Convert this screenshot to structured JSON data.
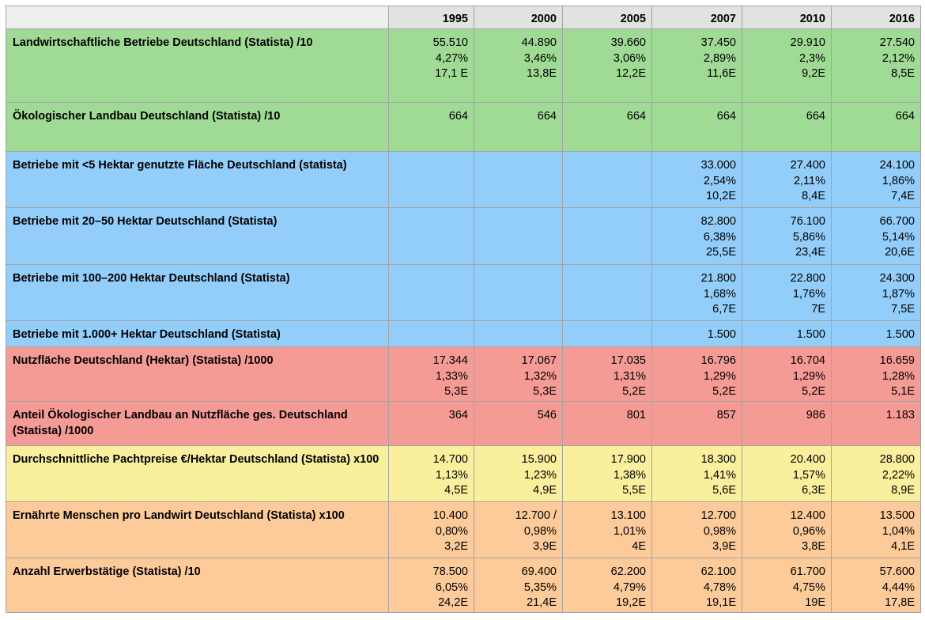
{
  "years": [
    "1995",
    "2000",
    "2005",
    "2007",
    "2010",
    "2016"
  ],
  "rows": [
    {
      "label": "Landwirtschaftliche Betriebe Deutschland (Statista) /10",
      "color": "#9fdb94",
      "cells": [
        [
          "55.510",
          "4,27%",
          "17,1 E"
        ],
        [
          "44.890",
          "3,46%",
          "13,8E"
        ],
        [
          "39.660",
          "3,06%",
          "12,2E"
        ],
        [
          "37.450",
          "2,89%",
          "11,6E"
        ],
        [
          "29.910",
          "2,3%",
          "9,2E"
        ],
        [
          "27.540",
          "2,12%",
          "8,5E"
        ]
      ]
    },
    {
      "label": "Ökologischer Landbau Deutschland (Statista) /10",
      "color": "#9fdb94",
      "cells": [
        [
          "664"
        ],
        [
          "664"
        ],
        [
          "664"
        ],
        [
          "664"
        ],
        [
          "664"
        ],
        [
          "664"
        ]
      ]
    },
    {
      "label": "Betriebe mit <5 Hektar genutzte Fläche Deutschland (statista)",
      "color": "#93cefa",
      "cells": [
        [],
        [],
        [],
        [
          "33.000",
          "2,54%",
          "10,2E"
        ],
        [
          "27.400",
          "2,11%",
          "8,4E"
        ],
        [
          "24.100",
          "1,86%",
          "7,4E"
        ]
      ]
    },
    {
      "label": "Betriebe mit 20–50 Hektar Deutschland (Statista)",
      "color": "#93cefa",
      "cells": [
        [],
        [],
        [],
        [
          "82.800",
          "6,38%",
          "25,5E"
        ],
        [
          "76.100",
          "5,86%",
          "23,4E"
        ],
        [
          "66.700",
          "5,14%",
          "20,6E"
        ]
      ]
    },
    {
      "label": "Betriebe mit 100–200 Hektar Deutschland (Statista)",
      "color": "#93cefa",
      "cells": [
        [],
        [],
        [],
        [
          "21.800",
          "1,68%",
          "6,7E"
        ],
        [
          "22.800",
          "1,76%",
          "7E"
        ],
        [
          "24.300",
          "1,87%",
          "7,5E"
        ]
      ]
    },
    {
      "label": "Betriebe mit 1.000+ Hektar Deutschland (Statista)",
      "color": "#93cefa",
      "cells": [
        [],
        [],
        [],
        [
          "1.500"
        ],
        [
          "1.500"
        ],
        [
          "1.500"
        ]
      ]
    },
    {
      "label": "Nutzfläche Deutschland (Hektar) (Statista) /1000",
      "color": "#f59b95",
      "cells": [
        [
          "17.344",
          "1,33%",
          "5,3E"
        ],
        [
          "17.067",
          "1,32%",
          "5,3E"
        ],
        [
          "17.035",
          "1,31%",
          "5,2E"
        ],
        [
          "16.796",
          "1,29%",
          "5,2E"
        ],
        [
          "16.704",
          "1,29%",
          "5,2E"
        ],
        [
          "16.659",
          "1,28%",
          "5,1E"
        ]
      ]
    },
    {
      "label": "Anteil Ökologischer Landbau an Nutzfläche ges. Deutschland (Statista) /1000",
      "color": "#f59b95",
      "cells": [
        [
          "364"
        ],
        [
          "546"
        ],
        [
          "801"
        ],
        [
          "857"
        ],
        [
          "986"
        ],
        [
          "1.183"
        ]
      ]
    },
    {
      "label": "Durchschnittliche Pachtpreise €/Hektar Deutschland (Statista) x100",
      "color": "#f9ef9c",
      "cells": [
        [
          "14.700",
          "1,13%",
          "4,5E"
        ],
        [
          "15.900",
          "1,23%",
          "4,9E"
        ],
        [
          "17.900",
          "1,38%",
          "5,5E"
        ],
        [
          "18.300",
          "1,41%",
          "5,6E"
        ],
        [
          "20.400",
          "1,57%",
          "6,3E"
        ],
        [
          "28.800",
          "2,22%",
          "8,9E"
        ]
      ]
    },
    {
      "label": "Ernährte Menschen pro Landwirt Deutschland (Statista) x100",
      "color": "#fccb99",
      "cells": [
        [
          "10.400",
          "0,80%",
          "3,2E"
        ],
        [
          "12.700 /",
          "0,98%",
          "3,9E"
        ],
        [
          "13.100",
          "1,01%",
          "4E"
        ],
        [
          "12.700",
          "0,98%",
          "3,9E"
        ],
        [
          "12.400",
          "0,96%",
          "3,8E"
        ],
        [
          "13.500",
          "1,04%",
          "4,1E"
        ]
      ]
    },
    {
      "label": "Anzahl Erwerbstätige (Statista) /10",
      "color": "#fccb99",
      "cells": [
        [
          "78.500",
          "6,05%",
          "24,2E"
        ],
        [
          "69.400",
          "5,35%",
          "21,4E"
        ],
        [
          "62.200",
          "4,79%",
          "19,2E"
        ],
        [
          "62.100",
          "4,78%",
          "19,1E"
        ],
        [
          "61.700",
          "4,75%",
          "19E"
        ],
        [
          "57.600",
          "4,44%",
          "17,8E"
        ]
      ]
    }
  ]
}
